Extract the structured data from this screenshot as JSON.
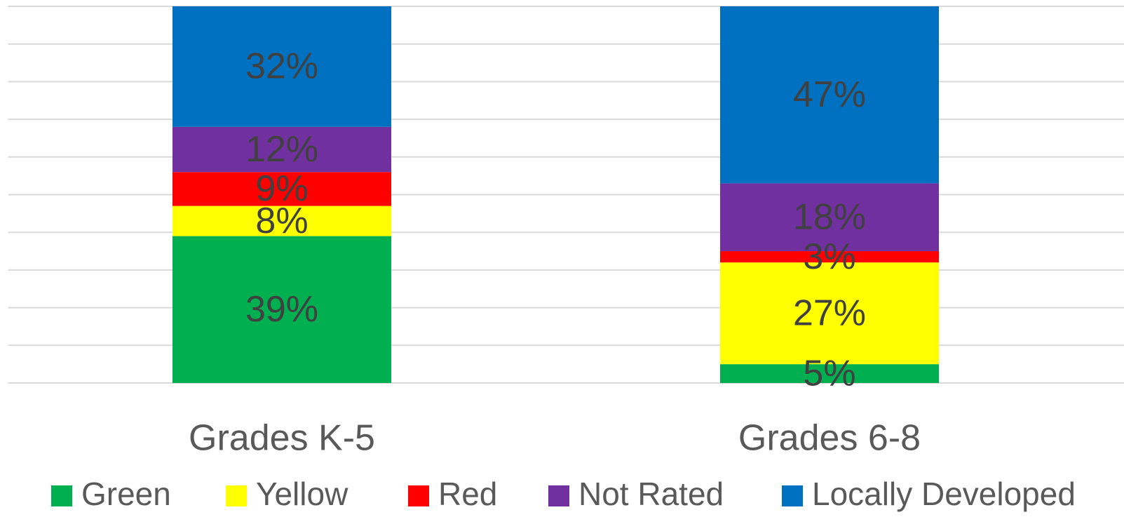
{
  "chart_data": {
    "type": "stacked_bar",
    "categories": [
      "Grades K-5",
      "Grades 6-8"
    ],
    "series": [
      {
        "name": "Green",
        "color": "#00b050",
        "values": [
          39,
          5
        ],
        "value_labels": [
          "39%",
          "5%"
        ]
      },
      {
        "name": "Yellow",
        "color": "#ffff00",
        "values": [
          8,
          27
        ],
        "value_labels": [
          "8%",
          "27%"
        ]
      },
      {
        "name": "Red",
        "color": "#ff0000",
        "values": [
          9,
          3
        ],
        "value_labels": [
          "9%",
          "3%"
        ]
      },
      {
        "name": "Not Rated",
        "color": "#7030a0",
        "values": [
          12,
          18
        ],
        "value_labels": [
          "12%",
          "18%"
        ]
      },
      {
        "name": "Locally Developed",
        "color": "#0070c0",
        "values": [
          32,
          47
        ],
        "value_labels": [
          "32%",
          "47%"
        ]
      }
    ],
    "ylim": [
      0,
      100
    ],
    "yticks": [
      0,
      10,
      20,
      30,
      40,
      50,
      60,
      70,
      80,
      90,
      100
    ],
    "grid": true,
    "legend": "bottom"
  }
}
